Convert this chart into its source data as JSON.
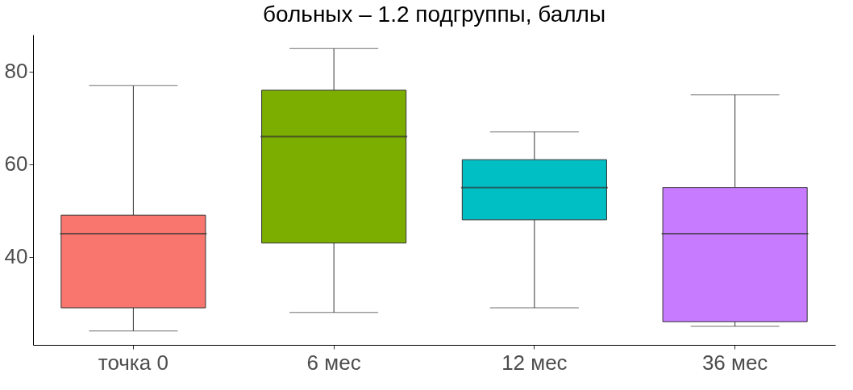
{
  "chart_data": {
    "type": "box",
    "title": "больных – 1.2 подгруппы, баллы",
    "categories": [
      "точка 0",
      "6 мес",
      "12 мес",
      "36 мес"
    ],
    "colors": [
      "#f8766d",
      "#7cae00",
      "#00bfc4",
      "#c77cff"
    ],
    "boxes": [
      {
        "low": 24,
        "q1": 29,
        "median": 45,
        "q3": 49,
        "high": 77
      },
      {
        "low": 28,
        "q1": 43,
        "median": 66,
        "q3": 76,
        "high": 85
      },
      {
        "low": 29,
        "q1": 48,
        "median": 55,
        "q3": 61,
        "high": 67
      },
      {
        "low": 25,
        "q1": 26,
        "median": 45,
        "q3": 55,
        "high": 75
      }
    ],
    "ylim": [
      21,
      88
    ],
    "yticks": [
      40,
      60,
      80
    ],
    "grid": false
  }
}
